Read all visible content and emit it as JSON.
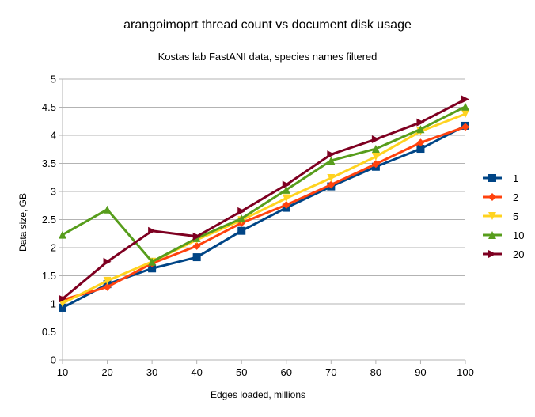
{
  "chart_data": {
    "type": "line",
    "title": "arangoimoprt thread count vs document disk usage",
    "subtitle": "Kostas lab FastANI data, species names filtered",
    "xlabel": "Edges loaded, millions",
    "ylabel": "Data size, GB",
    "x": [
      10,
      20,
      30,
      40,
      50,
      60,
      70,
      80,
      90,
      100
    ],
    "xlim": [
      10,
      100
    ],
    "ylim": [
      0,
      5
    ],
    "xticks": [
      "10",
      "20",
      "30",
      "40",
      "50",
      "60",
      "70",
      "80",
      "90",
      "100"
    ],
    "yticks": [
      "0",
      "0.5",
      "1",
      "1.5",
      "2",
      "2.5",
      "3",
      "3.5",
      "4",
      "4.5",
      "5"
    ],
    "grid": "horizontal",
    "legend_position": "right",
    "series": [
      {
        "name": "1",
        "color": "#004586",
        "marker": "square",
        "values": [
          0.93,
          1.35,
          1.63,
          1.83,
          2.3,
          2.71,
          3.09,
          3.44,
          3.76,
          4.17
        ]
      },
      {
        "name": "2",
        "color": "#ff420e",
        "marker": "diamond",
        "values": [
          1.07,
          1.3,
          1.72,
          2.03,
          2.44,
          2.76,
          3.12,
          3.49,
          3.87,
          4.15
        ]
      },
      {
        "name": "5",
        "color": "#ffd320",
        "marker": "triangle-down",
        "values": [
          1.01,
          1.41,
          1.75,
          2.14,
          2.49,
          2.88,
          3.24,
          3.62,
          4.07,
          4.38
        ]
      },
      {
        "name": "10",
        "color": "#579d1c",
        "marker": "triangle-up",
        "values": [
          2.23,
          2.68,
          1.75,
          2.17,
          2.52,
          3.03,
          3.55,
          3.76,
          4.11,
          4.51
        ]
      },
      {
        "name": "20",
        "color": "#7e0021",
        "marker": "triangle-right",
        "values": [
          1.09,
          1.75,
          2.3,
          2.2,
          2.65,
          3.12,
          3.66,
          3.93,
          4.23,
          4.64
        ]
      }
    ]
  }
}
